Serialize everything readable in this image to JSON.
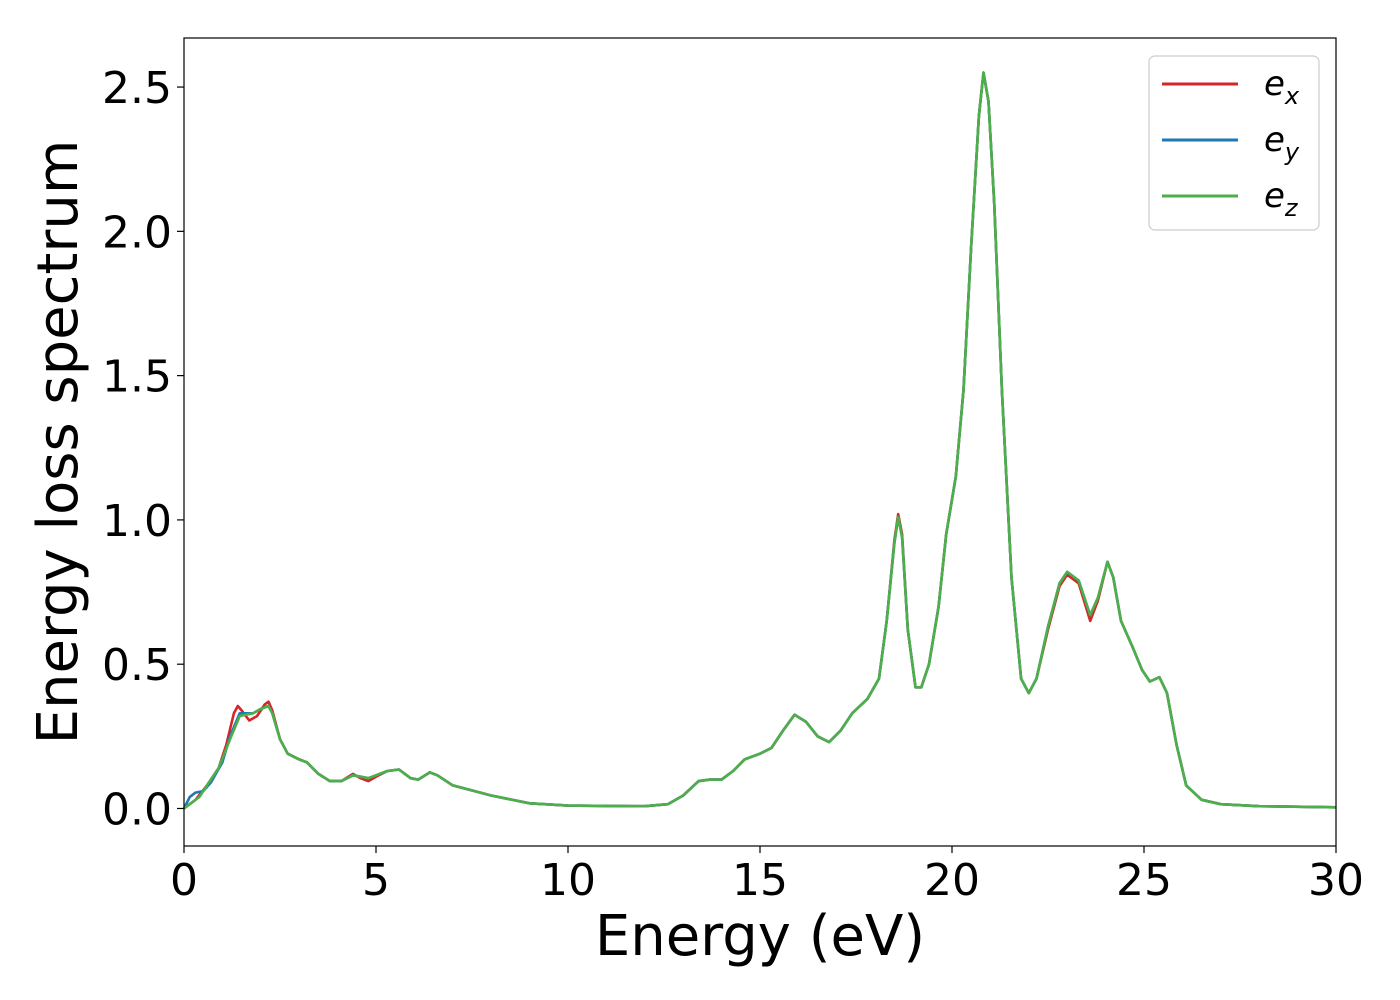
{
  "chart_data": {
    "type": "line",
    "xlabel": "Energy (eV)",
    "ylabel": "Energy loss spectrum",
    "xlim": [
      0,
      30
    ],
    "ylim": [
      -0.13,
      2.67
    ],
    "xticks": [
      0,
      5,
      10,
      15,
      20,
      25,
      30
    ],
    "xtick_labels": [
      "0",
      "5",
      "10",
      "15",
      "20",
      "25",
      "30"
    ],
    "yticks": [
      0.0,
      0.5,
      1.0,
      1.5,
      2.0,
      2.5
    ],
    "ytick_labels": [
      "0.0",
      "0.5",
      "1.0",
      "1.5",
      "2.0",
      "2.5"
    ],
    "grid": false,
    "legend_position": "top-right",
    "series": [
      {
        "name": "e_x",
        "legend_base": "e",
        "legend_sub": "x",
        "color": "#d62728",
        "points": [
          [
            0,
            0.0
          ],
          [
            0.3,
            0.03
          ],
          [
            0.6,
            0.08
          ],
          [
            0.9,
            0.14
          ],
          [
            1.1,
            0.22
          ],
          [
            1.3,
            0.33
          ],
          [
            1.4,
            0.355
          ],
          [
            1.5,
            0.34
          ],
          [
            1.7,
            0.305
          ],
          [
            1.9,
            0.32
          ],
          [
            2.1,
            0.36
          ],
          [
            2.2,
            0.37
          ],
          [
            2.3,
            0.34
          ],
          [
            2.5,
            0.24
          ],
          [
            2.7,
            0.19
          ],
          [
            3.0,
            0.17
          ],
          [
            3.2,
            0.16
          ],
          [
            3.5,
            0.12
          ],
          [
            3.8,
            0.095
          ],
          [
            4.1,
            0.095
          ],
          [
            4.4,
            0.12
          ],
          [
            4.6,
            0.105
          ],
          [
            4.8,
            0.095
          ],
          [
            5.0,
            0.11
          ],
          [
            5.3,
            0.13
          ],
          [
            5.6,
            0.135
          ],
          [
            5.9,
            0.105
          ],
          [
            6.1,
            0.1
          ],
          [
            6.4,
            0.125
          ],
          [
            6.6,
            0.115
          ],
          [
            7.0,
            0.08
          ],
          [
            8.0,
            0.045
          ],
          [
            9.0,
            0.018
          ],
          [
            10,
            0.01
          ],
          [
            11,
            0.009
          ],
          [
            12,
            0.008
          ],
          [
            12.6,
            0.015
          ],
          [
            13.0,
            0.045
          ],
          [
            13.4,
            0.095
          ],
          [
            13.7,
            0.1
          ],
          [
            14.0,
            0.1
          ],
          [
            14.3,
            0.13
          ],
          [
            14.6,
            0.17
          ],
          [
            15.0,
            0.19
          ],
          [
            15.3,
            0.21
          ],
          [
            15.6,
            0.27
          ],
          [
            15.9,
            0.325
          ],
          [
            16.2,
            0.3
          ],
          [
            16.5,
            0.25
          ],
          [
            16.8,
            0.23
          ],
          [
            17.1,
            0.27
          ],
          [
            17.4,
            0.33
          ],
          [
            17.8,
            0.38
          ],
          [
            18.1,
            0.45
          ],
          [
            18.3,
            0.65
          ],
          [
            18.5,
            0.93
          ],
          [
            18.6,
            1.02
          ],
          [
            18.7,
            0.95
          ],
          [
            18.85,
            0.62
          ],
          [
            19.05,
            0.42
          ],
          [
            19.2,
            0.42
          ],
          [
            19.4,
            0.5
          ],
          [
            19.65,
            0.7
          ],
          [
            19.85,
            0.95
          ],
          [
            20.1,
            1.15
          ],
          [
            20.3,
            1.45
          ],
          [
            20.5,
            1.95
          ],
          [
            20.7,
            2.4
          ],
          [
            20.82,
            2.55
          ],
          [
            20.95,
            2.45
          ],
          [
            21.1,
            2.1
          ],
          [
            21.3,
            1.45
          ],
          [
            21.55,
            0.8
          ],
          [
            21.8,
            0.45
          ],
          [
            22.0,
            0.4
          ],
          [
            22.2,
            0.45
          ],
          [
            22.5,
            0.62
          ],
          [
            22.8,
            0.77
          ],
          [
            23.0,
            0.81
          ],
          [
            23.3,
            0.78
          ],
          [
            23.6,
            0.65
          ],
          [
            23.8,
            0.72
          ],
          [
            24.05,
            0.855
          ],
          [
            24.2,
            0.8
          ],
          [
            24.4,
            0.65
          ],
          [
            24.7,
            0.56
          ],
          [
            24.95,
            0.48
          ],
          [
            25.15,
            0.44
          ],
          [
            25.4,
            0.455
          ],
          [
            25.6,
            0.4
          ],
          [
            25.85,
            0.22
          ],
          [
            26.1,
            0.08
          ],
          [
            26.5,
            0.03
          ],
          [
            27.0,
            0.015
          ],
          [
            28,
            0.008
          ],
          [
            30,
            0.004
          ]
        ]
      },
      {
        "name": "e_y",
        "legend_base": "e",
        "legend_sub": "y",
        "color": "#1f77b4",
        "points": [
          [
            0,
            0.0
          ],
          [
            0.15,
            0.04
          ],
          [
            0.3,
            0.055
          ],
          [
            0.5,
            0.06
          ],
          [
            0.7,
            0.09
          ],
          [
            1.0,
            0.16
          ],
          [
            1.2,
            0.25
          ],
          [
            1.45,
            0.33
          ],
          [
            1.6,
            0.33
          ],
          [
            1.8,
            0.33
          ],
          [
            2.0,
            0.345
          ],
          [
            2.2,
            0.355
          ],
          [
            2.3,
            0.33
          ],
          [
            2.5,
            0.24
          ],
          [
            2.7,
            0.19
          ],
          [
            3.0,
            0.17
          ],
          [
            3.2,
            0.16
          ],
          [
            3.5,
            0.12
          ],
          [
            3.8,
            0.095
          ],
          [
            4.1,
            0.095
          ],
          [
            4.4,
            0.115
          ],
          [
            4.6,
            0.11
          ],
          [
            4.8,
            0.105
          ],
          [
            5.0,
            0.115
          ],
          [
            5.3,
            0.13
          ],
          [
            5.6,
            0.135
          ],
          [
            5.9,
            0.105
          ],
          [
            6.1,
            0.1
          ],
          [
            6.4,
            0.125
          ],
          [
            6.6,
            0.115
          ],
          [
            7.0,
            0.08
          ],
          [
            8.0,
            0.045
          ],
          [
            9.0,
            0.018
          ],
          [
            10,
            0.01
          ],
          [
            11,
            0.009
          ],
          [
            12,
            0.008
          ],
          [
            12.6,
            0.015
          ],
          [
            13.0,
            0.045
          ],
          [
            13.4,
            0.095
          ],
          [
            13.7,
            0.1
          ],
          [
            14.0,
            0.1
          ],
          [
            14.3,
            0.13
          ],
          [
            14.6,
            0.17
          ],
          [
            15.0,
            0.19
          ],
          [
            15.3,
            0.21
          ],
          [
            15.6,
            0.27
          ],
          [
            15.9,
            0.325
          ],
          [
            16.2,
            0.3
          ],
          [
            16.5,
            0.25
          ],
          [
            16.8,
            0.23
          ],
          [
            17.1,
            0.27
          ],
          [
            17.4,
            0.33
          ],
          [
            17.8,
            0.38
          ],
          [
            18.1,
            0.45
          ],
          [
            18.3,
            0.65
          ],
          [
            18.5,
            0.92
          ],
          [
            18.6,
            1.01
          ],
          [
            18.7,
            0.94
          ],
          [
            18.85,
            0.62
          ],
          [
            19.05,
            0.42
          ],
          [
            19.2,
            0.42
          ],
          [
            19.4,
            0.5
          ],
          [
            19.65,
            0.7
          ],
          [
            19.85,
            0.95
          ],
          [
            20.1,
            1.15
          ],
          [
            20.3,
            1.45
          ],
          [
            20.5,
            1.95
          ],
          [
            20.7,
            2.4
          ],
          [
            20.82,
            2.55
          ],
          [
            20.95,
            2.45
          ],
          [
            21.1,
            2.1
          ],
          [
            21.3,
            1.45
          ],
          [
            21.55,
            0.8
          ],
          [
            21.8,
            0.45
          ],
          [
            22.0,
            0.4
          ],
          [
            22.2,
            0.45
          ],
          [
            22.5,
            0.63
          ],
          [
            22.8,
            0.78
          ],
          [
            23.0,
            0.82
          ],
          [
            23.3,
            0.79
          ],
          [
            23.6,
            0.67
          ],
          [
            23.8,
            0.73
          ],
          [
            24.05,
            0.855
          ],
          [
            24.2,
            0.8
          ],
          [
            24.4,
            0.65
          ],
          [
            24.7,
            0.56
          ],
          [
            24.95,
            0.48
          ],
          [
            25.15,
            0.44
          ],
          [
            25.4,
            0.455
          ],
          [
            25.6,
            0.4
          ],
          [
            25.85,
            0.22
          ],
          [
            26.1,
            0.08
          ],
          [
            26.5,
            0.03
          ],
          [
            27.0,
            0.015
          ],
          [
            28,
            0.008
          ],
          [
            30,
            0.004
          ]
        ]
      },
      {
        "name": "e_z",
        "legend_base": "e",
        "legend_sub": "z",
        "color": "#4daf4a",
        "points": [
          [
            0,
            0.0
          ],
          [
            0.2,
            0.02
          ],
          [
            0.4,
            0.04
          ],
          [
            0.6,
            0.08
          ],
          [
            0.9,
            0.14
          ],
          [
            1.2,
            0.24
          ],
          [
            1.45,
            0.32
          ],
          [
            1.6,
            0.325
          ],
          [
            1.8,
            0.33
          ],
          [
            2.0,
            0.345
          ],
          [
            2.2,
            0.355
          ],
          [
            2.3,
            0.33
          ],
          [
            2.5,
            0.24
          ],
          [
            2.7,
            0.19
          ],
          [
            3.0,
            0.17
          ],
          [
            3.2,
            0.16
          ],
          [
            3.5,
            0.12
          ],
          [
            3.8,
            0.095
          ],
          [
            4.1,
            0.095
          ],
          [
            4.4,
            0.115
          ],
          [
            4.6,
            0.11
          ],
          [
            4.8,
            0.105
          ],
          [
            5.0,
            0.115
          ],
          [
            5.3,
            0.13
          ],
          [
            5.6,
            0.135
          ],
          [
            5.9,
            0.105
          ],
          [
            6.1,
            0.1
          ],
          [
            6.4,
            0.125
          ],
          [
            6.6,
            0.115
          ],
          [
            7.0,
            0.08
          ],
          [
            8.0,
            0.045
          ],
          [
            9.0,
            0.018
          ],
          [
            10,
            0.01
          ],
          [
            11,
            0.009
          ],
          [
            12,
            0.008
          ],
          [
            12.6,
            0.015
          ],
          [
            13.0,
            0.045
          ],
          [
            13.4,
            0.095
          ],
          [
            13.7,
            0.1
          ],
          [
            14.0,
            0.1
          ],
          [
            14.3,
            0.13
          ],
          [
            14.6,
            0.17
          ],
          [
            15.0,
            0.19
          ],
          [
            15.3,
            0.21
          ],
          [
            15.6,
            0.27
          ],
          [
            15.9,
            0.325
          ],
          [
            16.2,
            0.3
          ],
          [
            16.5,
            0.25
          ],
          [
            16.8,
            0.23
          ],
          [
            17.1,
            0.27
          ],
          [
            17.4,
            0.33
          ],
          [
            17.8,
            0.38
          ],
          [
            18.1,
            0.45
          ],
          [
            18.3,
            0.65
          ],
          [
            18.5,
            0.92
          ],
          [
            18.6,
            1.01
          ],
          [
            18.7,
            0.94
          ],
          [
            18.85,
            0.62
          ],
          [
            19.05,
            0.42
          ],
          [
            19.2,
            0.42
          ],
          [
            19.4,
            0.5
          ],
          [
            19.65,
            0.7
          ],
          [
            19.85,
            0.95
          ],
          [
            20.1,
            1.15
          ],
          [
            20.3,
            1.45
          ],
          [
            20.5,
            1.95
          ],
          [
            20.7,
            2.4
          ],
          [
            20.82,
            2.55
          ],
          [
            20.95,
            2.45
          ],
          [
            21.1,
            2.1
          ],
          [
            21.3,
            1.45
          ],
          [
            21.55,
            0.8
          ],
          [
            21.8,
            0.45
          ],
          [
            22.0,
            0.4
          ],
          [
            22.2,
            0.45
          ],
          [
            22.5,
            0.63
          ],
          [
            22.8,
            0.78
          ],
          [
            23.0,
            0.82
          ],
          [
            23.3,
            0.79
          ],
          [
            23.6,
            0.67
          ],
          [
            23.8,
            0.73
          ],
          [
            24.05,
            0.855
          ],
          [
            24.2,
            0.8
          ],
          [
            24.4,
            0.65
          ],
          [
            24.7,
            0.56
          ],
          [
            24.95,
            0.48
          ],
          [
            25.15,
            0.44
          ],
          [
            25.4,
            0.455
          ],
          [
            25.6,
            0.4
          ],
          [
            25.85,
            0.22
          ],
          [
            26.1,
            0.08
          ],
          [
            26.5,
            0.03
          ],
          [
            27.0,
            0.015
          ],
          [
            28,
            0.008
          ],
          [
            30,
            0.004
          ]
        ]
      }
    ]
  }
}
